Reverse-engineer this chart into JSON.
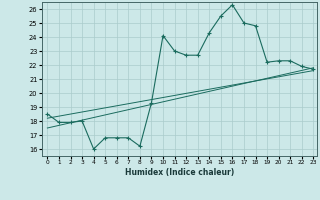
{
  "xlabel": "Humidex (Indice chaleur)",
  "xlim": [
    -0.5,
    23.3
  ],
  "ylim": [
    15.5,
    26.5
  ],
  "yticks": [
    16,
    17,
    18,
    19,
    20,
    21,
    22,
    23,
    24,
    25,
    26
  ],
  "xticks": [
    0,
    1,
    2,
    3,
    4,
    5,
    6,
    7,
    8,
    9,
    10,
    11,
    12,
    13,
    14,
    15,
    16,
    17,
    18,
    19,
    20,
    21,
    22,
    23
  ],
  "bg_color": "#cce8e8",
  "grid_color": "#aacccc",
  "line_color": "#1a6b5e",
  "series1_x": [
    0,
    1,
    2,
    3,
    4,
    5,
    6,
    7,
    8,
    9,
    10,
    11,
    12,
    13,
    14,
    15,
    16,
    17,
    18,
    19,
    20,
    21,
    22,
    23
  ],
  "series1_y": [
    18.5,
    17.9,
    17.9,
    18.0,
    16.0,
    16.8,
    16.8,
    16.8,
    16.2,
    19.3,
    24.1,
    23.0,
    22.7,
    22.7,
    24.3,
    25.5,
    26.3,
    25.0,
    24.8,
    22.2,
    22.3,
    22.3,
    21.9,
    21.7
  ],
  "series2_x": [
    0,
    23
  ],
  "series2_y": [
    17.5,
    21.8
  ],
  "series3_x": [
    0,
    23
  ],
  "series3_y": [
    18.2,
    21.6
  ]
}
